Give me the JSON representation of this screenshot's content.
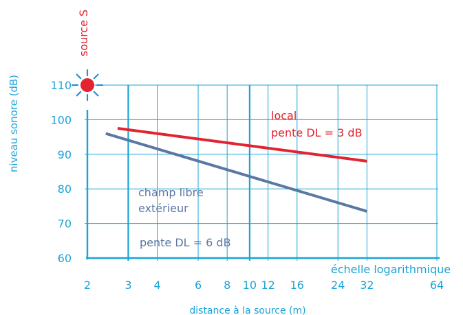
{
  "colors": {
    "axis": "#1aa3d6",
    "local": "#e3232f",
    "free_field": "#5a78a3",
    "source_dot": "#e3232f",
    "source_rays": "#2a8fd0"
  },
  "chart_data": {
    "type": "line",
    "x_scale": "log2",
    "xlim": [
      2,
      64
    ],
    "ylim": [
      60,
      115
    ],
    "grid": true,
    "xlabel": "distance à la source (m)",
    "ylabel": "niveau sonore (dB)",
    "x_scale_label": "échelle logarithmique",
    "x_ticks": [
      2,
      3,
      4,
      6,
      8,
      10,
      12,
      16,
      24,
      32,
      64
    ],
    "x_tick_labels": [
      "2",
      "3",
      "4",
      "6",
      "8",
      "10",
      "12",
      "16",
      "24",
      "32",
      "64"
    ],
    "y_ticks": [
      60,
      70,
      80,
      90,
      100,
      110
    ],
    "y_tick_labels": [
      "60",
      "70",
      "80",
      "90",
      "100",
      "110"
    ],
    "vertical_gridlines": [
      3,
      4,
      6,
      8,
      10,
      12,
      16,
      24,
      32,
      64
    ],
    "bold_vertical_gridlines": [
      2,
      3,
      10
    ],
    "source": {
      "label": "source S",
      "x": 2,
      "y": 110
    },
    "series": [
      {
        "key": "local",
        "x": [
          2.7,
          32
        ],
        "y": [
          97.5,
          88
        ],
        "annotation_lines": [
          "local",
          "pente DL = 3 dB"
        ]
      },
      {
        "key": "free_field",
        "x": [
          2.4,
          32
        ],
        "y": [
          96,
          73.5
        ],
        "annotation_lines": [
          "champ libre",
          "extérieur"
        ],
        "annotation_extra": "pente DL = 6 dB"
      }
    ]
  }
}
